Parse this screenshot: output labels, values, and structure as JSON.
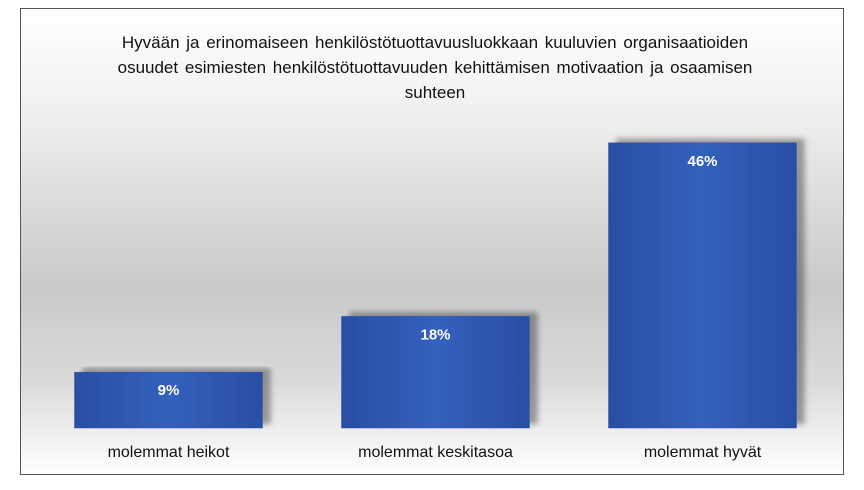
{
  "chart_data": {
    "type": "bar",
    "title": "Hyvään ja erinomaiseen henkilöstötuottavuusluokkaan kuuluvien organisaatioiden osuudet esimiesten henkilöstötuottavuuden kehittämisen motivaation ja osaamisen suhteen",
    "categories": [
      "molemmat heikot",
      "molemmat keskitasoa",
      "molemmat hyvät"
    ],
    "values": [
      9,
      18,
      46
    ],
    "value_labels": [
      "9%",
      "18%",
      "46%"
    ],
    "color": "#2e54ae"
  }
}
